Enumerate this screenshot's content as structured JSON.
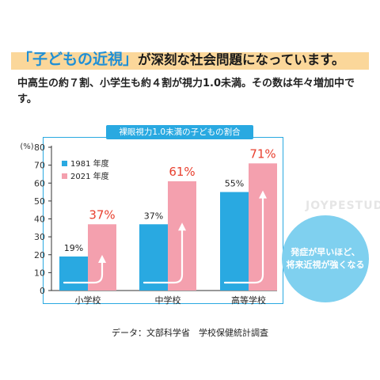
{
  "headline": {
    "accent": "「子どもの近視」",
    "rest": "が深刻な社会問題になっています。",
    "highlight_color": "#fbd79a"
  },
  "subtext": "中高生の約７割、小学生も約４割が視力1.0未満。その数は年々増加中です。",
  "callout": {
    "line1": "発症が早いほど、",
    "line2": "将来近視が強くなる",
    "color": "#7fd0ef"
  },
  "watermark": "JOYPESTUDIO",
  "source": "データ：文部科学省　学校保健統計調査",
  "chart_data": {
    "type": "bar",
    "title": "裸眼視力1.0未満の子どもの割合",
    "categories": [
      "小学校",
      "中学校",
      "高等学校"
    ],
    "series": [
      {
        "name": "1981 年度",
        "values": [
          19,
          37,
          55
        ],
        "labels": [
          "19%",
          "37%",
          "55%"
        ],
        "color": "#29a9e1",
        "label_color": "#222222"
      },
      {
        "name": "2021 年度",
        "values": [
          37,
          61,
          71
        ],
        "labels": [
          "37%",
          "61%",
          "71%"
        ],
        "color": "#f4a0ae",
        "label_color": "#e8402f"
      }
    ],
    "yunit": "(%)",
    "ylim": [
      0,
      80
    ],
    "yticks": [
      0,
      10,
      20,
      30,
      40,
      50,
      60,
      70,
      80
    ],
    "grid": false,
    "legend": "top-left"
  }
}
